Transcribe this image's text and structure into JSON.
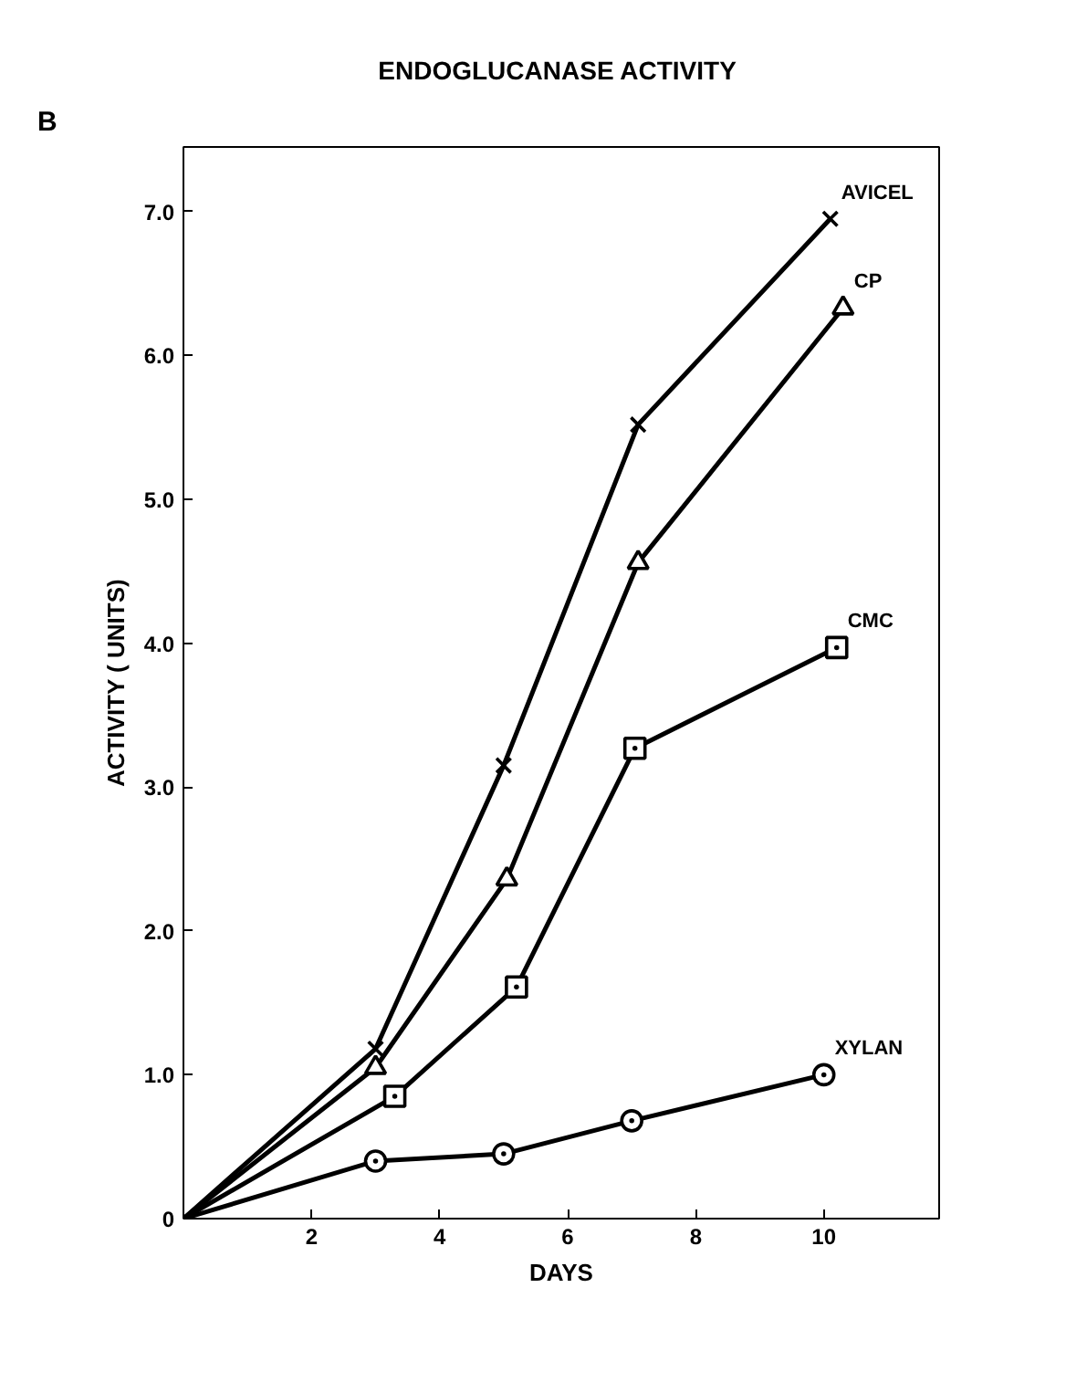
{
  "chart_data": {
    "type": "line",
    "title": "ENDOGLUCANASE  ACTIVITY",
    "xlabel": "DAYS",
    "ylabel": "ACTIVITY ( UNITS)",
    "annotations": [
      "B"
    ],
    "xlim": [
      0,
      11.8
    ],
    "ylim": [
      0,
      7.45
    ],
    "xticks": [
      2,
      4,
      6,
      8,
      10
    ],
    "yticks": [
      {
        "value": 0,
        "label": "0"
      },
      {
        "value": 1,
        "label": "1.0"
      },
      {
        "value": 2,
        "label": "2.0"
      },
      {
        "value": 3,
        "label": "3.0"
      },
      {
        "value": 4,
        "label": "4.0"
      },
      {
        "value": 5,
        "label": "5.0"
      },
      {
        "value": 6,
        "label": "6.0"
      },
      {
        "value": 7,
        "label": "7.0"
      }
    ],
    "grid": false,
    "line_style": "solid",
    "series": [
      {
        "name": "AVICEL",
        "color": "#000000",
        "marker": "cross",
        "x": [
          0,
          3,
          5,
          7.1,
          10.1
        ],
        "values": [
          0,
          1.18,
          3.15,
          5.52,
          6.95
        ]
      },
      {
        "name": "CP",
        "color": "#000000",
        "marker": "triangle",
        "x": [
          0,
          3,
          5.05,
          7.1,
          10.3
        ],
        "values": [
          0,
          1.05,
          2.36,
          4.56,
          6.33
        ]
      },
      {
        "name": "CMC",
        "color": "#000000",
        "marker": "square",
        "x": [
          0,
          3.3,
          5.2,
          7.05,
          10.2
        ],
        "values": [
          0,
          0.85,
          1.61,
          3.27,
          3.97
        ]
      },
      {
        "name": "XYLAN",
        "color": "#000000",
        "marker": "circle",
        "x": [
          0,
          3,
          5,
          7,
          10
        ],
        "values": [
          0,
          0.4,
          0.45,
          0.68,
          1.0
        ]
      }
    ]
  }
}
